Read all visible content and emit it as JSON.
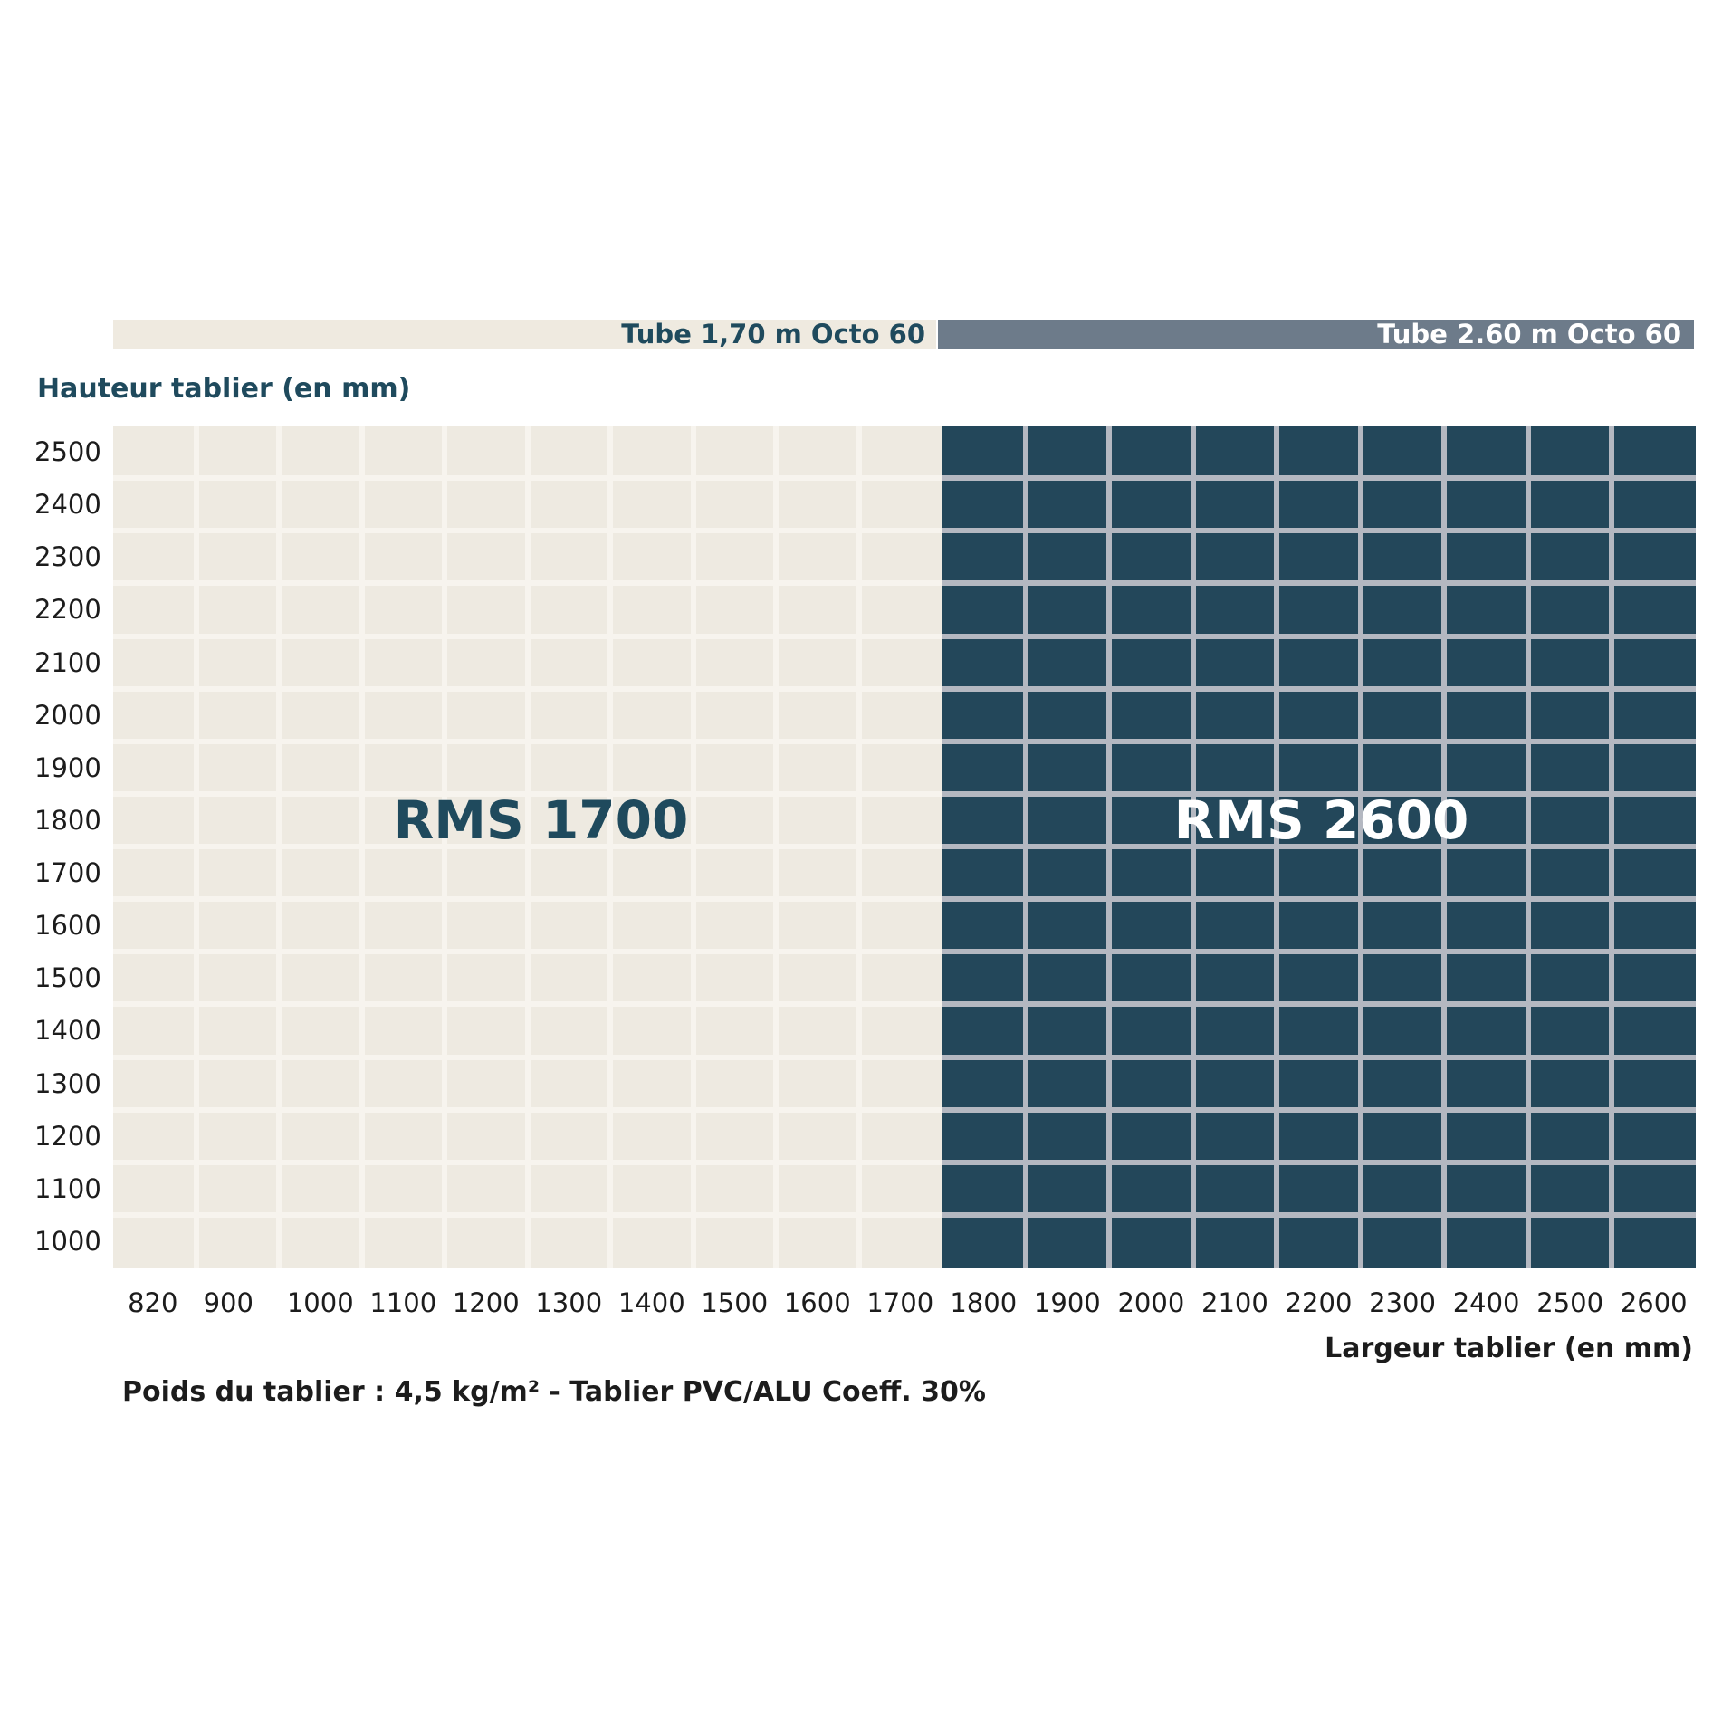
{
  "chart_data": {
    "type": "heatmap",
    "ylabel": "Hauteur tablier (en mm)",
    "xlabel": "Largeur tablier (en mm)",
    "x_categories": [
      "820",
      "900",
      "1000",
      "1100",
      "1200",
      "1300",
      "1400",
      "1500",
      "1600",
      "1700",
      "1800",
      "1900",
      "2000",
      "2100",
      "2200",
      "2300",
      "2400",
      "2500",
      "2600"
    ],
    "y_categories": [
      "2500",
      "2400",
      "2300",
      "2200",
      "2100",
      "2000",
      "1900",
      "1800",
      "1700",
      "1600",
      "1500",
      "1400",
      "1300",
      "1200",
      "1100",
      "1000"
    ],
    "regions": [
      {
        "name": "RMS 1700",
        "header": "Tube 1,70 m Octo 60",
        "x_from": "820",
        "x_to": "1700",
        "y_from": "1000",
        "y_to": "2500",
        "fill": "#eeeae1",
        "grid": "#f7f4ee",
        "header_fill": "#efeae0",
        "text_color": "#1f4a5d"
      },
      {
        "name": "RMS 2600",
        "header": "Tube 2.60 m Octo 60",
        "x_from": "1800",
        "x_to": "2600",
        "y_from": "1000",
        "y_to": "2500",
        "fill": "#23475a",
        "grid": "#b4b8c1",
        "header_fill": "#6d7b8a",
        "text_color": "#ffffff"
      }
    ],
    "footnote": "Poids du tablier : 4,5 kg/m²  -  Tablier PVC/ALU Coeff. 30%"
  }
}
